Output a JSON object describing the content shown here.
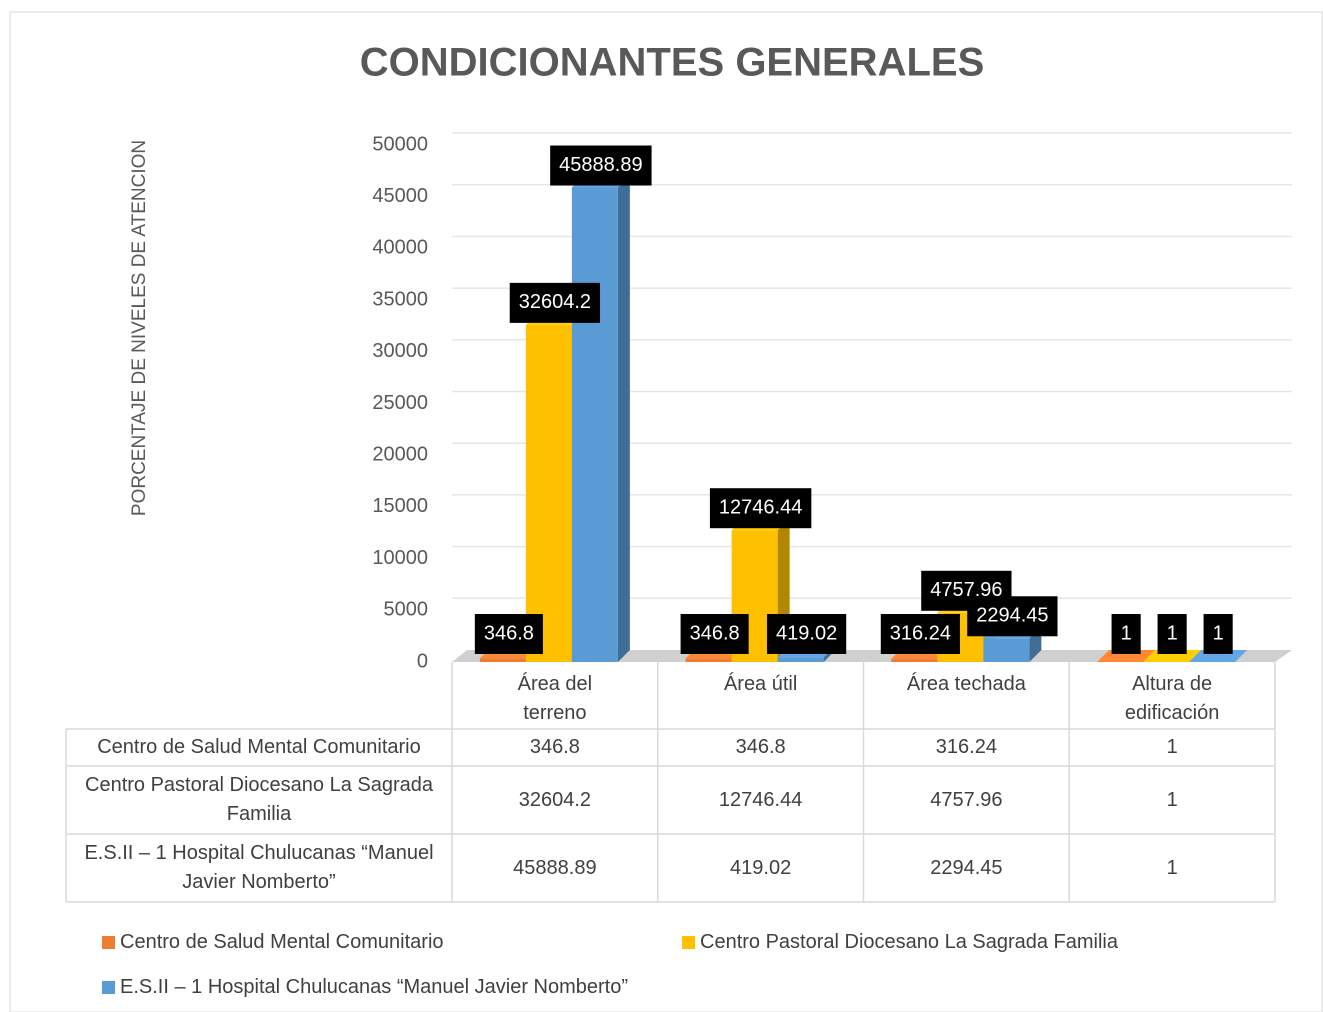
{
  "chart_data": {
    "type": "bar3d",
    "title": "CONDICIONANTES GENERALES",
    "y_label": "PORCENTAJE DE NIVELES DE ATENCION",
    "categories": [
      "Área del terreno",
      "Área útil",
      "Área techada",
      "Altura de edificación"
    ],
    "series": [
      {
        "name": "Centro de Salud Mental Comunitario",
        "color": "#ed7d31",
        "values": [
          346.8,
          346.8,
          316.24,
          1
        ]
      },
      {
        "name": "Centro Pastoral Diocesano La Sagrada Familia",
        "color": "#ffc000",
        "values": [
          32604.2,
          12746.44,
          4757.96,
          1
        ]
      },
      {
        "name": "E.S.II – 1 Hospital Chulucanas “Manuel Javier Nomberto”",
        "color": "#5b9bd5",
        "values": [
          45888.89,
          419.02,
          2294.45,
          1
        ]
      }
    ],
    "ylim": [
      0,
      50000
    ],
    "yticks": [
      0,
      5000,
      10000,
      15000,
      20000,
      25000,
      30000,
      35000,
      40000,
      45000,
      50000
    ],
    "grid": true
  }
}
